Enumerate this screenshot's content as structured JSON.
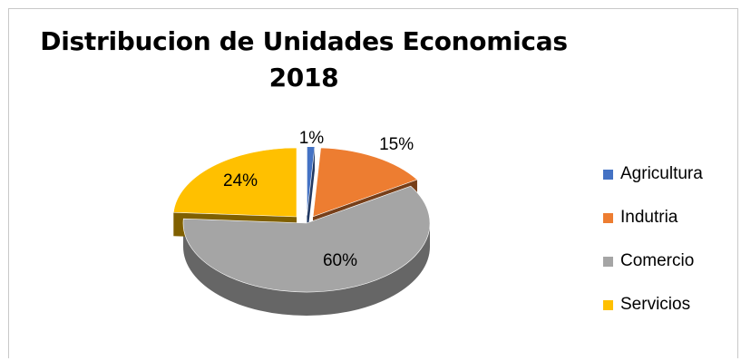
{
  "chart_data": {
    "type": "pie",
    "title": "Distribucion de Unidades Economicas 2018",
    "title_lines": [
      "Distribucion de Unidades Economicas",
      "2018"
    ],
    "three_d": true,
    "exploded": true,
    "legend_position": "right",
    "slices": [
      {
        "name": "Agricultura",
        "value": 1,
        "label": "1%",
        "color": "#4472c4"
      },
      {
        "name": "Indutria",
        "value": 15,
        "label": "15%",
        "color": "#ed7d31"
      },
      {
        "name": "Comercio",
        "value": 60,
        "label": "60%",
        "color": "#a5a5a5"
      },
      {
        "name": "Servicios",
        "value": 24,
        "label": "24%",
        "color": "#ffc000"
      }
    ]
  }
}
